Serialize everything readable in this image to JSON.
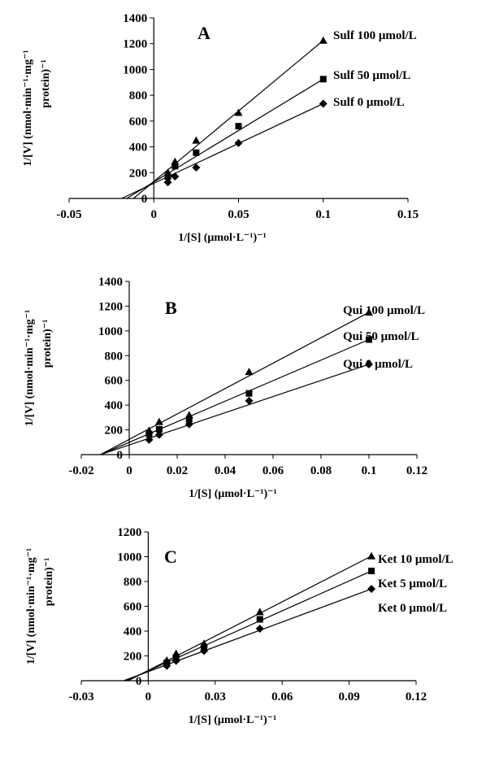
{
  "chart_data": [
    {
      "type": "line",
      "panel_label": "A",
      "xlabel": "1/[S] (μmol·L⁻¹)⁻¹",
      "ylabel_line1": "1/[V] (nmol·min⁻¹·mg⁻¹",
      "ylabel_line2": "protein)⁻¹",
      "xlim": [
        -0.05,
        0.15
      ],
      "ylim": [
        0,
        1400
      ],
      "xticks": [
        "-0.05",
        "0",
        "0.05",
        "0.1",
        "0.15"
      ],
      "yticks": [
        "0",
        "200",
        "400",
        "600",
        "800",
        "1000",
        "1200",
        "1400"
      ],
      "x": [
        0.0083,
        0.0125,
        0.025,
        0.05,
        0.1
      ],
      "series": [
        {
          "name": "Sulf 100 μmol/L",
          "marker": "triangle",
          "values": [
            200,
            285,
            450,
            665,
            1225
          ],
          "fit": [
            [
              -0.012,
              0
            ],
            [
              0.1,
              1225
            ]
          ]
        },
        {
          "name": "Sulf 50 μmol/L",
          "marker": "square",
          "values": [
            170,
            250,
            355,
            560,
            925
          ],
          "fit": [
            [
              -0.016,
              0
            ],
            [
              0.1,
              925
            ]
          ]
        },
        {
          "name": "Sulf 0 μmol/L",
          "marker": "diamond",
          "values": [
            125,
            170,
            240,
            430,
            735
          ],
          "fit": [
            [
              -0.019,
              0
            ],
            [
              0.1,
              735
            ]
          ]
        }
      ]
    },
    {
      "type": "line",
      "panel_label": "B",
      "xlabel": "1/[S] (μmol·L⁻¹)⁻¹",
      "ylabel_line1": "1/[V] (nmol·min⁻¹·mg⁻¹",
      "ylabel_line2": "protein)⁻¹",
      "xlim": [
        -0.02,
        0.12
      ],
      "ylim": [
        0,
        1400
      ],
      "xticks": [
        "-0.02",
        "0",
        "0.02",
        "0.04",
        "0.06",
        "0.08",
        "0.1",
        "0.12"
      ],
      "yticks": [
        "0",
        "200",
        "400",
        "600",
        "800",
        "1000",
        "1200",
        "1400"
      ],
      "x": [
        0.0083,
        0.0125,
        0.025,
        0.05,
        0.1
      ],
      "series": [
        {
          "name": "Qui 100 μmol/L",
          "marker": "triangle",
          "values": [
            195,
            265,
            320,
            670,
            1150
          ],
          "fit": [
            [
              -0.012,
              0
            ],
            [
              0.1,
              1150
            ]
          ]
        },
        {
          "name": "Qui 50 μmol/L",
          "marker": "square",
          "values": [
            165,
            205,
            285,
            495,
            930
          ],
          "fit": [
            [
              -0.012,
              0
            ],
            [
              0.1,
              930
            ]
          ]
        },
        {
          "name": "Qui 0 μmol/L",
          "marker": "diamond",
          "values": [
            120,
            160,
            245,
            435,
            730
          ],
          "fit": [
            [
              -0.012,
              0
            ],
            [
              0.1,
              730
            ]
          ]
        }
      ]
    },
    {
      "type": "line",
      "panel_label": "C",
      "xlabel": "1/[S] (μmol·L⁻¹)⁻¹",
      "ylabel_line1": "1/[V] (nmol·min⁻¹·mg⁻¹",
      "ylabel_line2": "protein)⁻¹",
      "xlim": [
        -0.03,
        0.12
      ],
      "ylim": [
        0,
        1200
      ],
      "xticks": [
        "-0.03",
        "0",
        "0.03",
        "0.06",
        "0.09",
        "0.12"
      ],
      "yticks": [
        "0",
        "200",
        "400",
        "600",
        "800",
        "1000",
        "1200"
      ],
      "x": [
        0.0083,
        0.0125,
        0.025,
        0.05,
        0.1
      ],
      "series": [
        {
          "name": "Ket 10 μmol/L",
          "marker": "triangle",
          "values": [
            165,
            220,
            300,
            555,
            1005
          ],
          "fit": [
            [
              -0.009,
              0
            ],
            [
              0.1,
              1005
            ]
          ]
        },
        {
          "name": "Ket 5 μmol/L",
          "marker": "square",
          "values": [
            145,
            190,
            270,
            495,
            885
          ],
          "fit": [
            [
              -0.01,
              0
            ],
            [
              0.1,
              885
            ]
          ]
        },
        {
          "name": "Ket 0 μmol/L",
          "marker": "diamond",
          "values": [
            120,
            160,
            240,
            420,
            740
          ],
          "fit": [
            [
              -0.011,
              0
            ],
            [
              0.1,
              740
            ]
          ]
        }
      ]
    }
  ]
}
